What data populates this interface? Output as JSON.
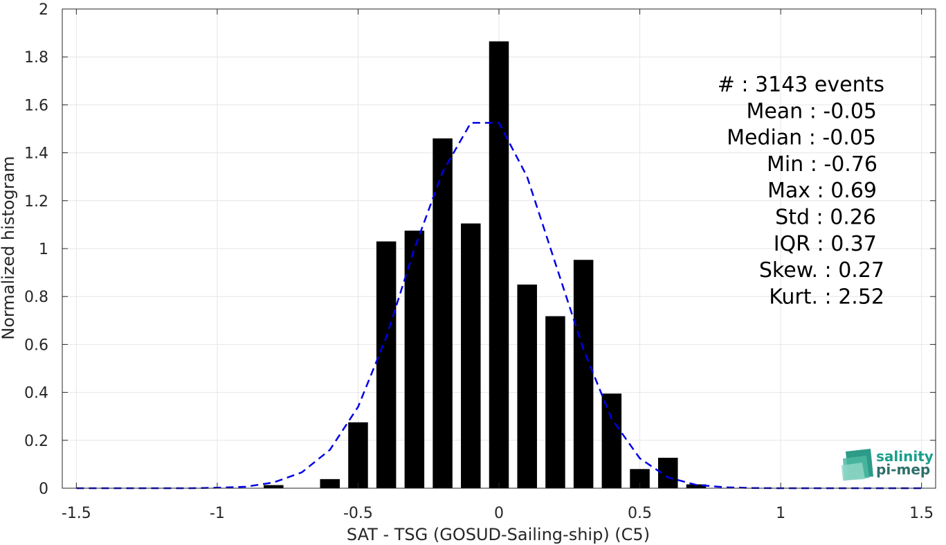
{
  "chart_data": {
    "type": "bar",
    "xlabel": "SAT - TSG (GOSUD-Sailing-ship) (C5)",
    "ylabel": "Normalized histogram",
    "xlim": [
      -1.55,
      1.55
    ],
    "ylim": [
      0,
      2
    ],
    "grid": true,
    "x_ticks": [
      -1.5,
      -1,
      -0.5,
      0,
      0.5,
      1,
      1.5
    ],
    "x_tick_labels": [
      "-1.5",
      "-1",
      "-0.5",
      "0",
      "0.5",
      "1",
      "1.5"
    ],
    "y_ticks": [
      0,
      0.2,
      0.4,
      0.6,
      0.8,
      1,
      1.2,
      1.4,
      1.6,
      1.8,
      2
    ],
    "y_tick_labels": [
      "0",
      "0.2",
      "0.4",
      "0.6",
      "0.8",
      "1",
      "1.2",
      "1.4",
      "1.6",
      "1.8",
      "2"
    ],
    "bar_color": "#000000",
    "bars": {
      "x": [
        -0.8,
        -0.6,
        -0.5,
        -0.4,
        -0.3,
        -0.2,
        -0.1,
        0.0,
        0.1,
        0.2,
        0.3,
        0.4,
        0.5,
        0.6,
        0.7
      ],
      "values": [
        0.013,
        0.038,
        0.275,
        1.03,
        1.075,
        1.46,
        1.105,
        1.865,
        0.85,
        0.718,
        0.953,
        0.395,
        0.08,
        0.127,
        0.016
      ]
    },
    "fit_curve": {
      "style": "dashed",
      "color": "#0000e6",
      "x": [
        -1.5,
        -1.4,
        -1.3,
        -1.2,
        -1.1,
        -1.0,
        -0.9,
        -0.8,
        -0.7,
        -0.6,
        -0.5,
        -0.4,
        -0.3,
        -0.2,
        -0.1,
        0.0,
        0.1,
        0.2,
        0.3,
        0.4,
        0.5,
        0.6,
        0.7,
        0.8,
        0.9,
        1.0,
        1.1,
        1.2,
        1.3,
        1.4,
        1.5
      ],
      "y": [
        0,
        0,
        0,
        0,
        0,
        0.002,
        0.006,
        0.024,
        0.066,
        0.16,
        0.34,
        0.63,
        1.0,
        1.32,
        1.525,
        1.525,
        1.3,
        0.94,
        0.58,
        0.29,
        0.125,
        0.045,
        0.014,
        0.004,
        0.001,
        0,
        0,
        0,
        0,
        0,
        0
      ]
    },
    "stats": [
      "#  : 3143 events",
      "Mean : -0.05",
      "Median : -0.05",
      "Min : -0.76",
      "Max : 0.69",
      "Std : 0.26",
      "IQR : 0.37",
      "Skew. : 0.27",
      "Kurt. : 2.52"
    ]
  },
  "logo": {
    "line1": "salinity",
    "line2": "pi-mep",
    "color1": "#1a9e8a",
    "color2": "#2e6f6a"
  }
}
